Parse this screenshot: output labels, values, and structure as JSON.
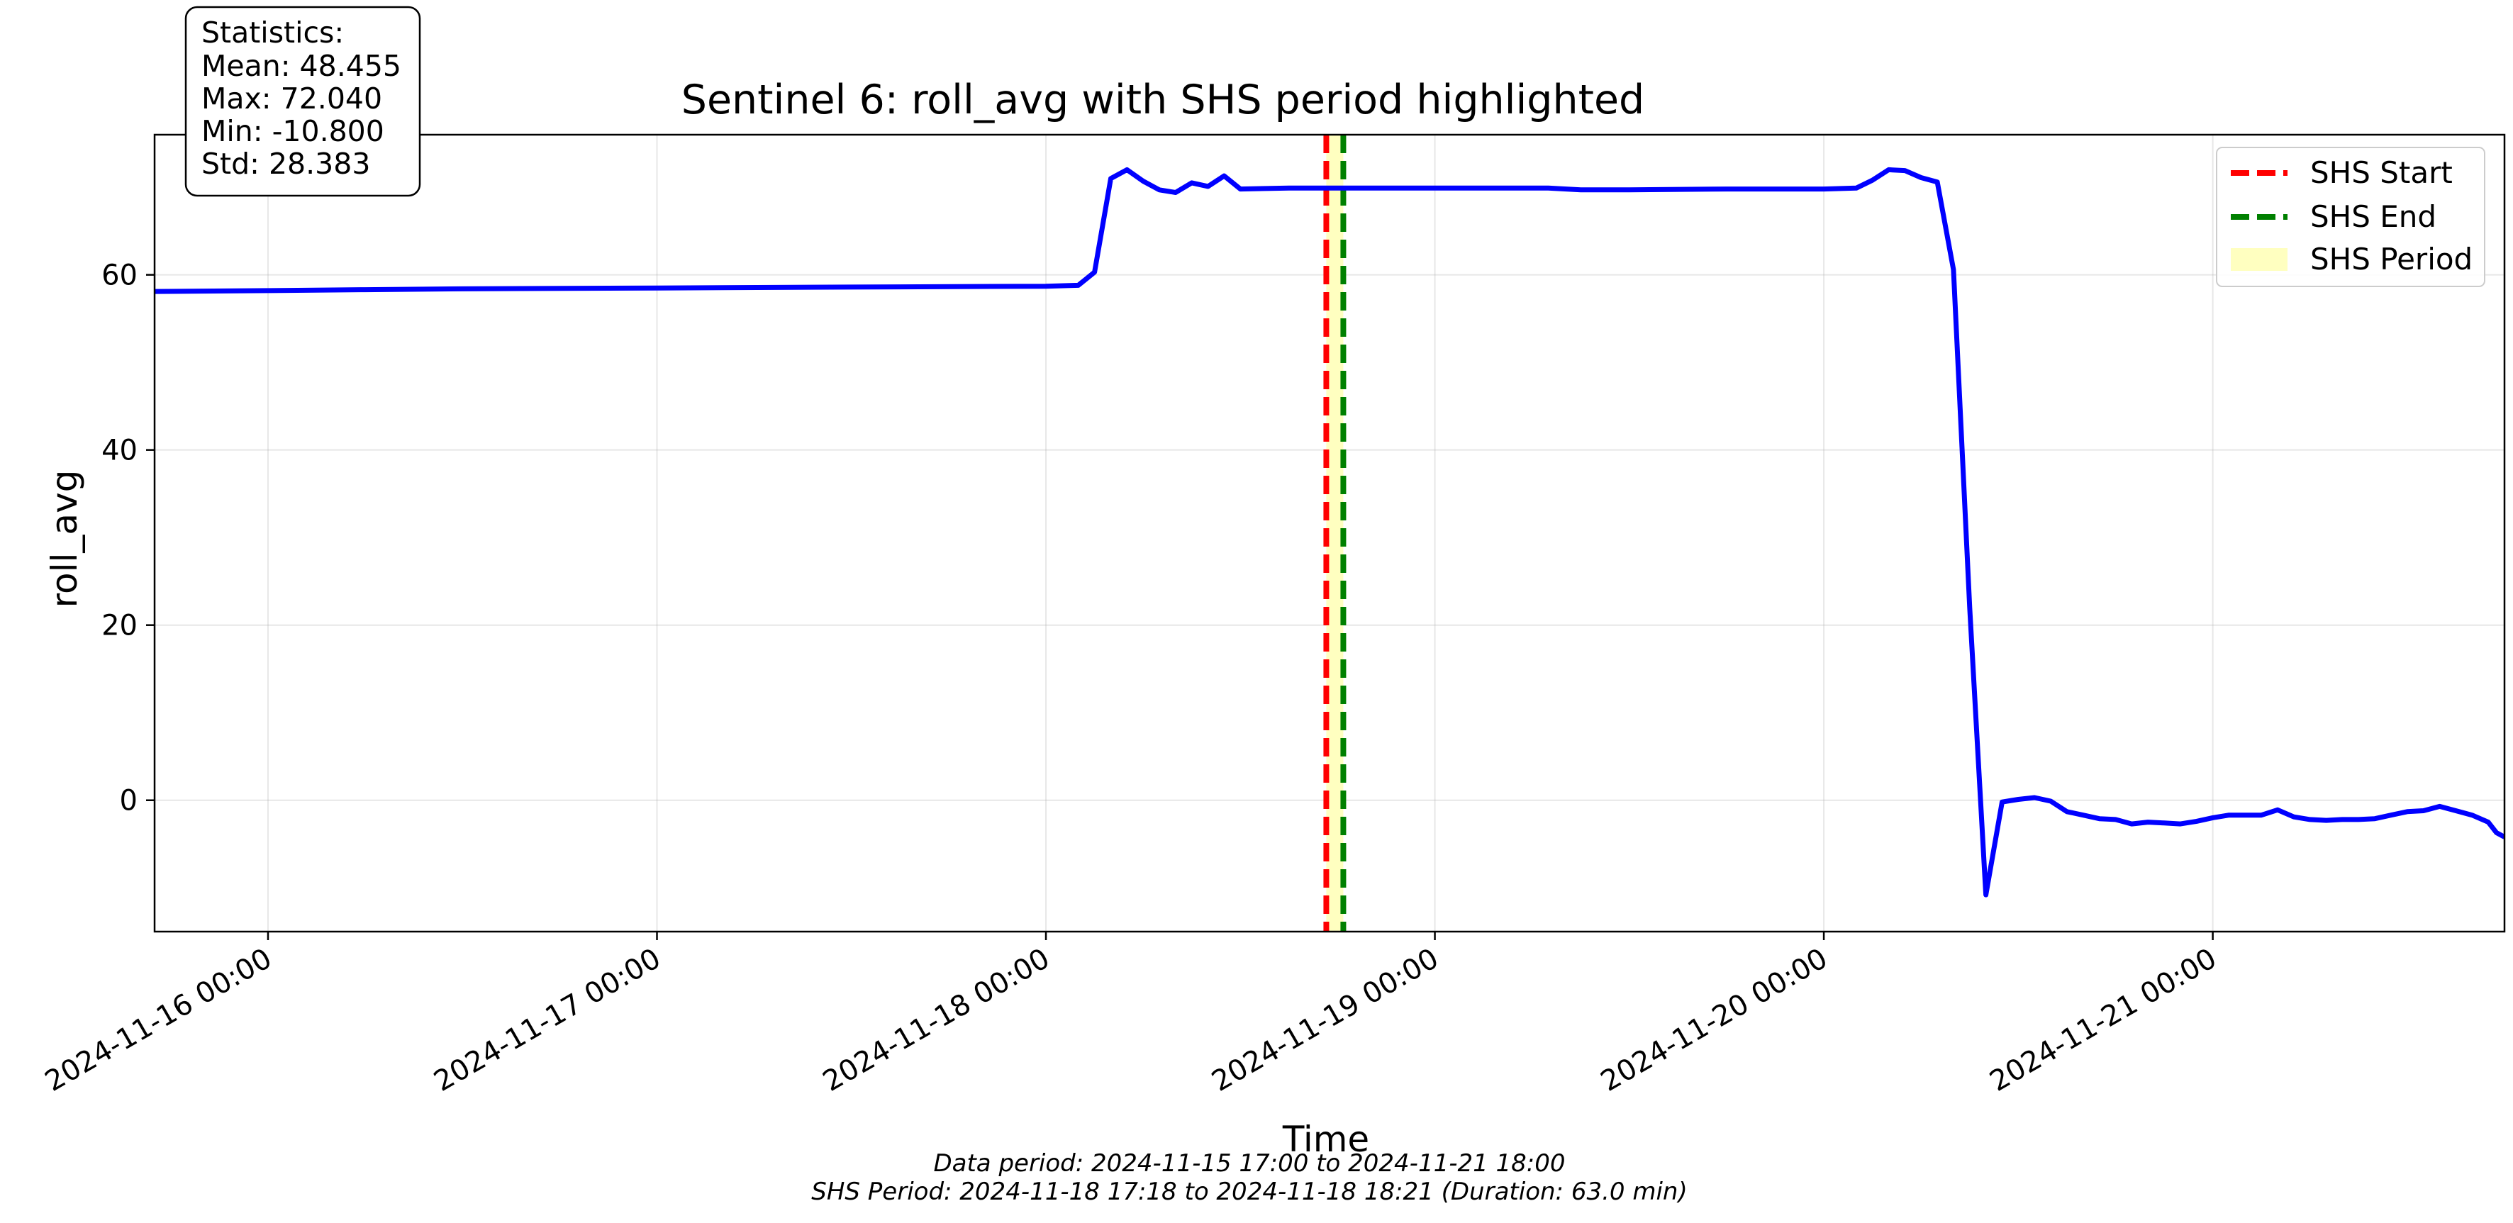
{
  "chart_data": {
    "type": "line",
    "title": "Sentinel 6: roll_avg with SHS period highlighted",
    "xlabel": "Time",
    "ylabel": "roll_avg",
    "x_range": [
      "2024-11-15 17:00",
      "2024-11-21 18:00"
    ],
    "ylim": [
      -15,
      76
    ],
    "grid": true,
    "x_ticks": [
      "2024-11-16 00:00",
      "2024-11-17 00:00",
      "2024-11-18 00:00",
      "2024-11-19 00:00",
      "2024-11-20 00:00",
      "2024-11-21 00:00"
    ],
    "y_ticks": [
      0,
      20,
      40,
      60
    ],
    "series": [
      {
        "color": "#0000ff",
        "points": [
          [
            "2024-11-15 17:00",
            58.1
          ],
          [
            "2024-11-16 00:00",
            58.2
          ],
          [
            "2024-11-16 06:00",
            58.3
          ],
          [
            "2024-11-16 12:00",
            58.4
          ],
          [
            "2024-11-17 00:00",
            58.5
          ],
          [
            "2024-11-17 12:00",
            58.6
          ],
          [
            "2024-11-18 00:00",
            58.7
          ],
          [
            "2024-11-18 02:00",
            58.8
          ],
          [
            "2024-11-18 03:00",
            60.3
          ],
          [
            "2024-11-18 04:00",
            71.0
          ],
          [
            "2024-11-18 05:00",
            72.0
          ],
          [
            "2024-11-18 06:00",
            70.7
          ],
          [
            "2024-11-18 07:00",
            69.7
          ],
          [
            "2024-11-18 08:00",
            69.4
          ],
          [
            "2024-11-18 09:00",
            70.5
          ],
          [
            "2024-11-18 10:00",
            70.1
          ],
          [
            "2024-11-18 11:00",
            71.3
          ],
          [
            "2024-11-18 12:00",
            69.8
          ],
          [
            "2024-11-18 15:00",
            69.9
          ],
          [
            "2024-11-18 21:00",
            69.9
          ],
          [
            "2024-11-19 03:00",
            69.9
          ],
          [
            "2024-11-19 07:00",
            69.9
          ],
          [
            "2024-11-19 09:00",
            69.7
          ],
          [
            "2024-11-19 12:00",
            69.7
          ],
          [
            "2024-11-19 18:00",
            69.8
          ],
          [
            "2024-11-20 00:00",
            69.8
          ],
          [
            "2024-11-20 02:00",
            69.9
          ],
          [
            "2024-11-20 03:00",
            70.8
          ],
          [
            "2024-11-20 04:00",
            72.0
          ],
          [
            "2024-11-20 05:00",
            71.9
          ],
          [
            "2024-11-20 06:00",
            71.1
          ],
          [
            "2024-11-20 07:00",
            70.6
          ],
          [
            "2024-11-20 08:00",
            60.6
          ],
          [
            "2024-11-20 09:00",
            22.0
          ],
          [
            "2024-11-20 10:00",
            -10.8
          ],
          [
            "2024-11-20 11:00",
            -0.2
          ],
          [
            "2024-11-20 12:00",
            0.1
          ],
          [
            "2024-11-20 13:00",
            0.3
          ],
          [
            "2024-11-20 14:00",
            -0.1
          ],
          [
            "2024-11-20 15:00",
            -1.3
          ],
          [
            "2024-11-20 16:00",
            -1.7
          ],
          [
            "2024-11-20 17:00",
            -2.1
          ],
          [
            "2024-11-20 18:00",
            -2.2
          ],
          [
            "2024-11-20 19:00",
            -2.7
          ],
          [
            "2024-11-20 20:00",
            -2.5
          ],
          [
            "2024-11-20 21:00",
            -2.6
          ],
          [
            "2024-11-20 22:00",
            -2.7
          ],
          [
            "2024-11-20 23:00",
            -2.4
          ],
          [
            "2024-11-21 00:00",
            -2.0
          ],
          [
            "2024-11-21 01:00",
            -1.7
          ],
          [
            "2024-11-21 02:00",
            -1.7
          ],
          [
            "2024-11-21 03:00",
            -1.7
          ],
          [
            "2024-11-21 04:00",
            -1.1
          ],
          [
            "2024-11-21 05:00",
            -1.9
          ],
          [
            "2024-11-21 06:00",
            -2.2
          ],
          [
            "2024-11-21 07:00",
            -2.3
          ],
          [
            "2024-11-21 08:00",
            -2.2
          ],
          [
            "2024-11-21 09:00",
            -2.2
          ],
          [
            "2024-11-21 10:00",
            -2.1
          ],
          [
            "2024-11-21 11:00",
            -1.7
          ],
          [
            "2024-11-21 12:00",
            -1.3
          ],
          [
            "2024-11-21 13:00",
            -1.2
          ],
          [
            "2024-11-21 14:00",
            -0.7
          ],
          [
            "2024-11-21 15:00",
            -1.2
          ],
          [
            "2024-11-21 16:00",
            -1.7
          ],
          [
            "2024-11-21 17:00",
            -2.5
          ],
          [
            "2024-11-21 17:30",
            -3.7
          ],
          [
            "2024-11-21 18:00",
            -4.2
          ]
        ]
      }
    ],
    "shs_start": "2024-11-18 17:18",
    "shs_end": "2024-11-18 18:21",
    "shs_start_color": "#ff0000",
    "shs_end_color": "#008000",
    "shs_period_color": "#ffffc0",
    "legend": {
      "placement": "top-right",
      "entries": [
        "SHS Start",
        "SHS End",
        "SHS Period"
      ]
    },
    "stats_box": {
      "placement": "top-left",
      "lines": [
        "Statistics:",
        "Mean: 48.455",
        "Max: 72.040",
        "Min: -10.800",
        "Std: 28.383"
      ]
    }
  },
  "captions": [
    "Data period: 2024-11-15 17:00 to 2024-11-21 18:00",
    "SHS Period: 2024-11-18 17:18 to 2024-11-18 18:21 (Duration: 63.0 min)"
  ]
}
